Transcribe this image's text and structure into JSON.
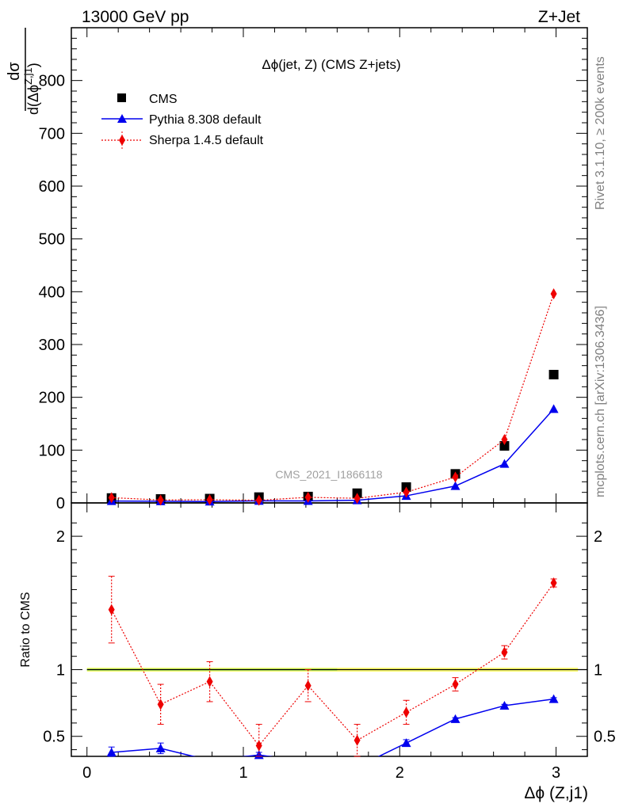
{
  "header": {
    "energy_label": "13000 GeV pp",
    "process_label": "Z+Jet"
  },
  "side_text": {
    "rivet": "Rivet 3.1.10, ≥ 200k events",
    "mcplots": "mcplots.cern.ch [arXiv:1306.3436]"
  },
  "chart_data": {
    "type": "scatter",
    "title": "Δϕ(jet, Z) (CMS Z+jets)",
    "watermark": "CMS_2021_I1866118",
    "xlabel": "Δϕ (Z,j1)",
    "ylabel_main": {
      "num": "dσ",
      "den": "d(Δϕ",
      "sup": "Z,j1",
      "close": ")"
    },
    "ylabel_ratio": "Ratio to CMS",
    "xlim": [
      -0.1,
      3.2
    ],
    "ylim_main": [
      0,
      900
    ],
    "ylim_ratio": [
      0.35,
      2.25
    ],
    "xticks": [
      0,
      1,
      2,
      3
    ],
    "yticks_main": [
      0,
      100,
      200,
      300,
      400,
      500,
      600,
      700,
      800
    ],
    "yticks_ratio": [
      0.5,
      1,
      2
    ],
    "x": [
      0.157,
      0.471,
      0.785,
      1.1,
      1.414,
      1.728,
      2.042,
      2.356,
      2.67,
      2.985
    ],
    "series": [
      {
        "name": "CMS",
        "color": "#000000",
        "marker": "square",
        "values": [
          9.3,
          7.5,
          8.2,
          11.0,
          12.1,
          18.4,
          30.0,
          55.0,
          108.0,
          243.0
        ],
        "ratio": [
          1,
          1,
          1,
          1,
          1,
          1,
          1,
          1,
          1,
          1
        ]
      },
      {
        "name": "Pythia 8.308 default",
        "color": "#0000ee",
        "marker": "triangle",
        "line": "solid",
        "values": [
          3.5,
          3.1,
          2.6,
          3.9,
          3.7,
          5.0,
          13.4,
          32.0,
          74.0,
          178.0
        ],
        "ratio": [
          0.38,
          0.41,
          0.32,
          0.36,
          0.31,
          0.27,
          0.45,
          0.63,
          0.73,
          0.78
        ],
        "ratio_err": [
          0.04,
          0.04,
          0.0,
          0.02,
          0.0,
          0.0,
          0.025,
          0.01,
          0.01,
          0.01
        ]
      },
      {
        "name": "Sherpa 1.4.5 default",
        "color": "#ee0000",
        "marker": "diamond",
        "line": "dotted",
        "values": [
          10.0,
          5.5,
          6.0,
          5.0,
          10.6,
          8.7,
          20.3,
          49.0,
          120.0,
          396.0
        ],
        "ratio": [
          1.45,
          0.74,
          0.91,
          0.43,
          0.88,
          0.47,
          0.68,
          0.89,
          1.13,
          1.65
        ],
        "ratio_err": [
          0.25,
          0.15,
          0.15,
          0.16,
          0.12,
          0.12,
          0.09,
          0.05,
          0.05,
          0.03
        ]
      }
    ]
  }
}
